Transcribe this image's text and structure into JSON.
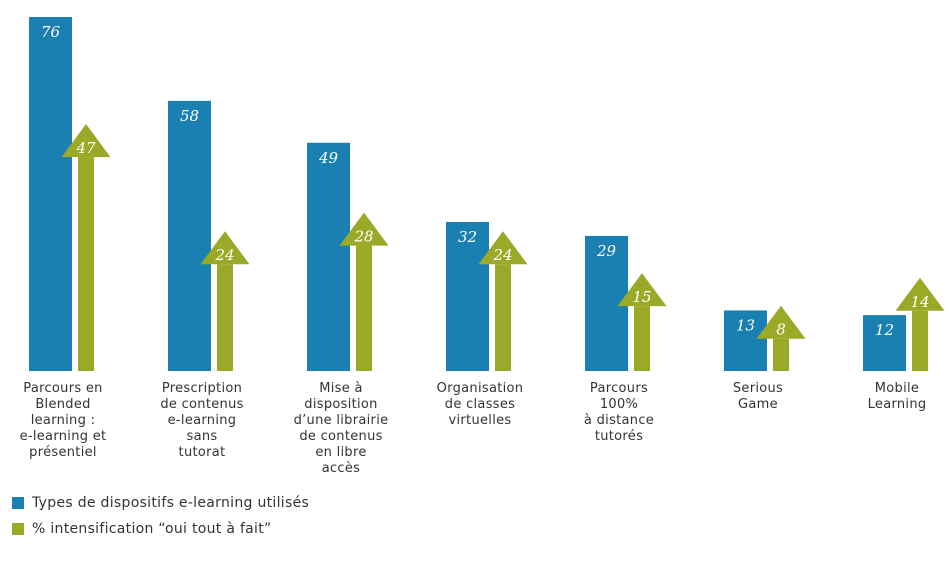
{
  "colors": {
    "series1": "#1a7fb1",
    "series2": "#9aaa28",
    "label": "#ffffff"
  },
  "chart_data": {
    "type": "bar",
    "categories": [
      "Parcours en\nBlended\nlearning :\ne-learning et\nprésentiel",
      "Prescription\nde contenus\ne-learning\nsans\ntutorat",
      "Mise à\ndisposition\nd’une librairie\nde contenus\nen libre\naccès",
      "Organisation\nde classes\nvirtuelles",
      "Parcours\n100%\nà distance\ntutorés",
      "Serious\nGame",
      "Mobile\nLearning"
    ],
    "series": [
      {
        "name": "Types de dispositifs e-learning utilisés",
        "values": [
          76,
          58,
          49,
          32,
          29,
          13,
          12
        ]
      },
      {
        "name": "% intensification “oui tout à fait”",
        "values": [
          47,
          24,
          28,
          24,
          15,
          8,
          14
        ]
      }
    ],
    "ylim": [
      0,
      76
    ],
    "grid": false,
    "legend": "bottom-left"
  }
}
